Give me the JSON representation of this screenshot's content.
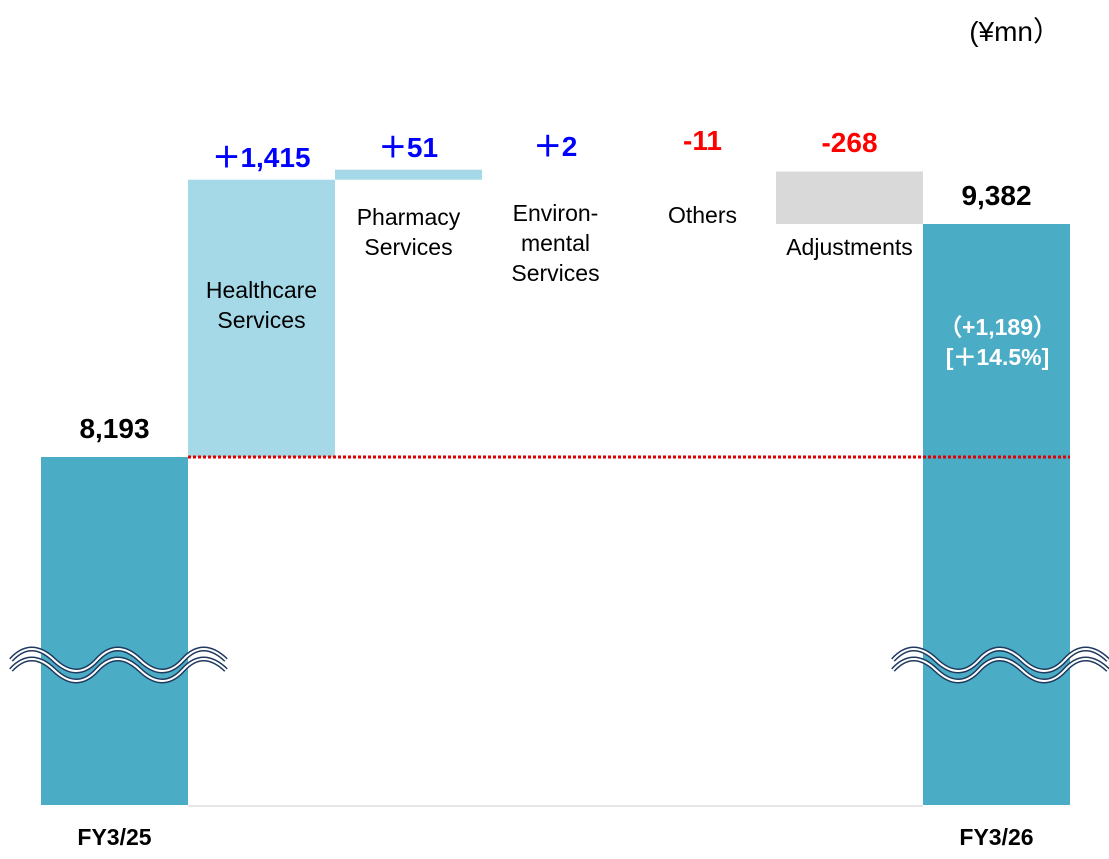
{
  "chart_data": {
    "type": "waterfall",
    "unit_label": "(¥mn）",
    "categories": [
      "FY3/25",
      "Healthcare\nServices",
      "Pharmacy\nServices",
      "Environ-\nmental\nServices",
      "Others",
      "Adjustments",
      "FY3/26"
    ],
    "kinds": [
      "total",
      "delta",
      "delta",
      "delta",
      "delta",
      "delta",
      "total"
    ],
    "values": [
      8193,
      1415,
      51,
      2,
      -11,
      -268,
      9382
    ],
    "value_labels": [
      "8,193",
      "＋1,415",
      "＋51",
      "＋2",
      "-11",
      "-268",
      "9,382"
    ],
    "colors": [
      "#4bacc6",
      "#a5d9e8",
      "#a5d9e8",
      "#ffffff",
      "#ffffff",
      "#d9d9d9",
      "#4bacc6"
    ],
    "increase_label_color": "#0000ff",
    "decrease_label_color": "#ff0000",
    "total_label_color": "#000000",
    "change_label": "（+1,189）",
    "change_pct_label": "[＋14.5%]",
    "reference_line_color": "#e00000",
    "axis_break": true
  }
}
